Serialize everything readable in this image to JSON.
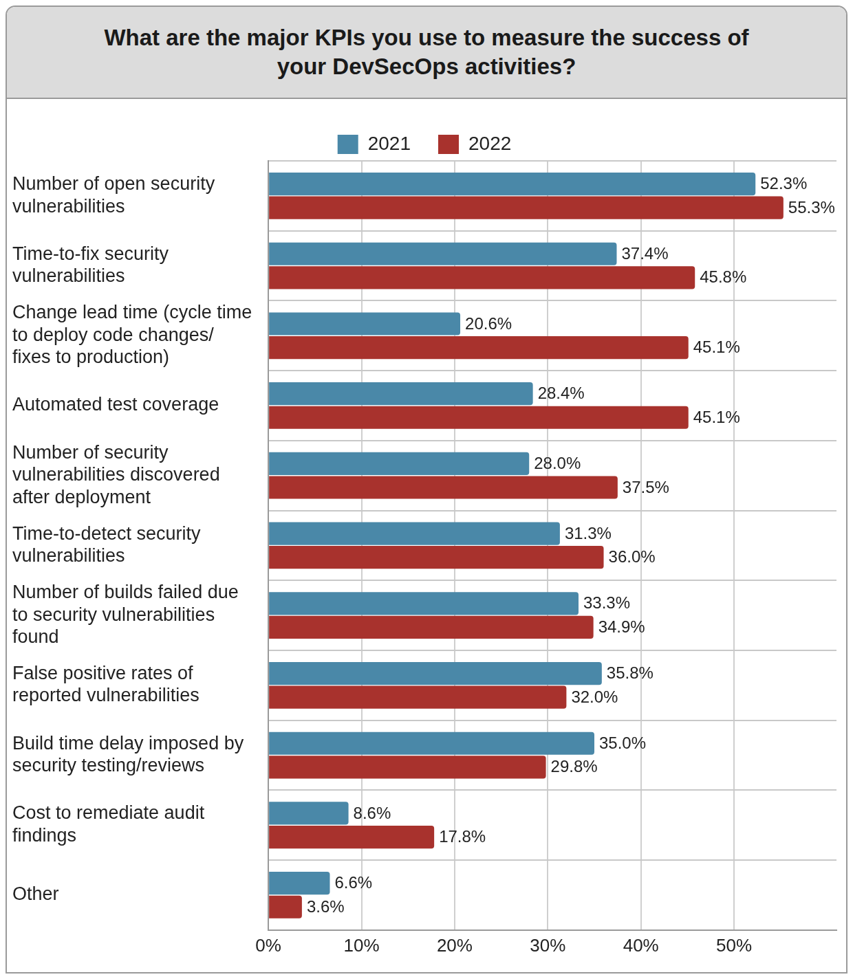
{
  "chart_data": {
    "type": "bar",
    "orientation": "horizontal",
    "title": "What are the major KPIs you use to measure the success of your DevSecOps activities?",
    "categories": [
      "Number of open security vulnerabilities",
      "Time-to-fix security vulnerabilities",
      "Change lead time (cycle time to deploy code changes/ fixes to production)",
      "Automated test coverage",
      "Number of security vulnerabilities discovered after deployment",
      "Time-to-detect security vulnerabilities",
      "Number of builds failed due to security vulnerabilities found",
      "False positive rates of reported vulnerabilities",
      "Build time delay imposed by security testing/reviews",
      "Cost to remediate audit findings",
      "Other"
    ],
    "series": [
      {
        "name": "2021",
        "color": "#4a88a8",
        "values": [
          52.3,
          37.4,
          20.6,
          28.4,
          28.0,
          31.3,
          33.3,
          35.8,
          35.0,
          8.6,
          6.6
        ],
        "value_labels": [
          "52.3%",
          "37.4%",
          "20.6%",
          "28.4%",
          "28.0%",
          "31.3%",
          "33.3%",
          "35.8%",
          "35.0%",
          "8.6%",
          "6.6%"
        ]
      },
      {
        "name": "2022",
        "color": "#a8322d",
        "values": [
          55.3,
          45.8,
          45.1,
          45.1,
          37.5,
          36.0,
          34.9,
          32.0,
          29.8,
          17.8,
          3.6
        ],
        "value_labels": [
          "55.3%",
          "45.8%",
          "45.1%",
          "45.1%",
          "37.5%",
          "36.0%",
          "34.9%",
          "32.0%",
          "29.8%",
          "17.8%",
          "3.6%"
        ]
      }
    ],
    "xlim": [
      0,
      61
    ],
    "xticks": [
      {
        "value": 0,
        "label": "0%"
      },
      {
        "value": 10,
        "label": "10%"
      },
      {
        "value": 20,
        "label": "20%"
      },
      {
        "value": 30,
        "label": "30%"
      },
      {
        "value": 40,
        "label": "40%"
      },
      {
        "value": 50,
        "label": "50%"
      }
    ],
    "grid": true,
    "legend": "top",
    "data_labels": true
  }
}
